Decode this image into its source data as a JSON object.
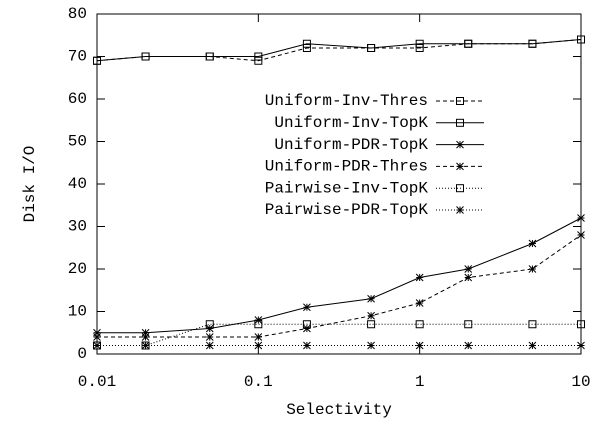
{
  "chart_data": {
    "type": "line",
    "xlabel": "Selectivity",
    "ylabel": "Disk I/O",
    "x": [
      0.01,
      0.02,
      0.05,
      0.1,
      0.2,
      0.5,
      1,
      2,
      5,
      10
    ],
    "xscale": "log",
    "xlim": [
      0.01,
      10
    ],
    "xticks": [
      0.01,
      0.1,
      1,
      10
    ],
    "ylim": [
      0,
      80
    ],
    "yticks": [
      0,
      10,
      20,
      30,
      40,
      50,
      60,
      70,
      80
    ],
    "legend": "center",
    "series": [
      {
        "name": "Uniform-Inv-Thres",
        "color": "#000000",
        "dash": "dashed",
        "marker": "square",
        "values": [
          69,
          70,
          70,
          69,
          72,
          72,
          72,
          73,
          73,
          74
        ]
      },
      {
        "name": "Uniform-Inv-TopK",
        "color": "#000000",
        "dash": "solid",
        "marker": "square",
        "values": [
          69,
          70,
          70,
          70,
          73,
          72,
          73,
          73,
          73,
          74
        ]
      },
      {
        "name": "Uniform-PDR-TopK",
        "color": "#000000",
        "dash": "solid",
        "marker": "star",
        "values": [
          5,
          5,
          6,
          8,
          11,
          13,
          18,
          20,
          26,
          32
        ]
      },
      {
        "name": "Uniform-PDR-Thres",
        "color": "#000000",
        "dash": "dashed",
        "marker": "star",
        "values": [
          4,
          4,
          4,
          4,
          6,
          9,
          12,
          18,
          20,
          28
        ]
      },
      {
        "name": "Pairwise-Inv-TopK",
        "color": "#000000",
        "dash": "dotted",
        "marker": "square",
        "values": [
          2,
          2,
          7,
          7,
          7,
          7,
          7,
          7,
          7,
          7
        ]
      },
      {
        "name": "Pairwise-PDR-TopK",
        "color": "#000000",
        "dash": "dotted",
        "marker": "star",
        "values": [
          2,
          2,
          2,
          2,
          2,
          2,
          2,
          2,
          2,
          2
        ]
      }
    ]
  }
}
